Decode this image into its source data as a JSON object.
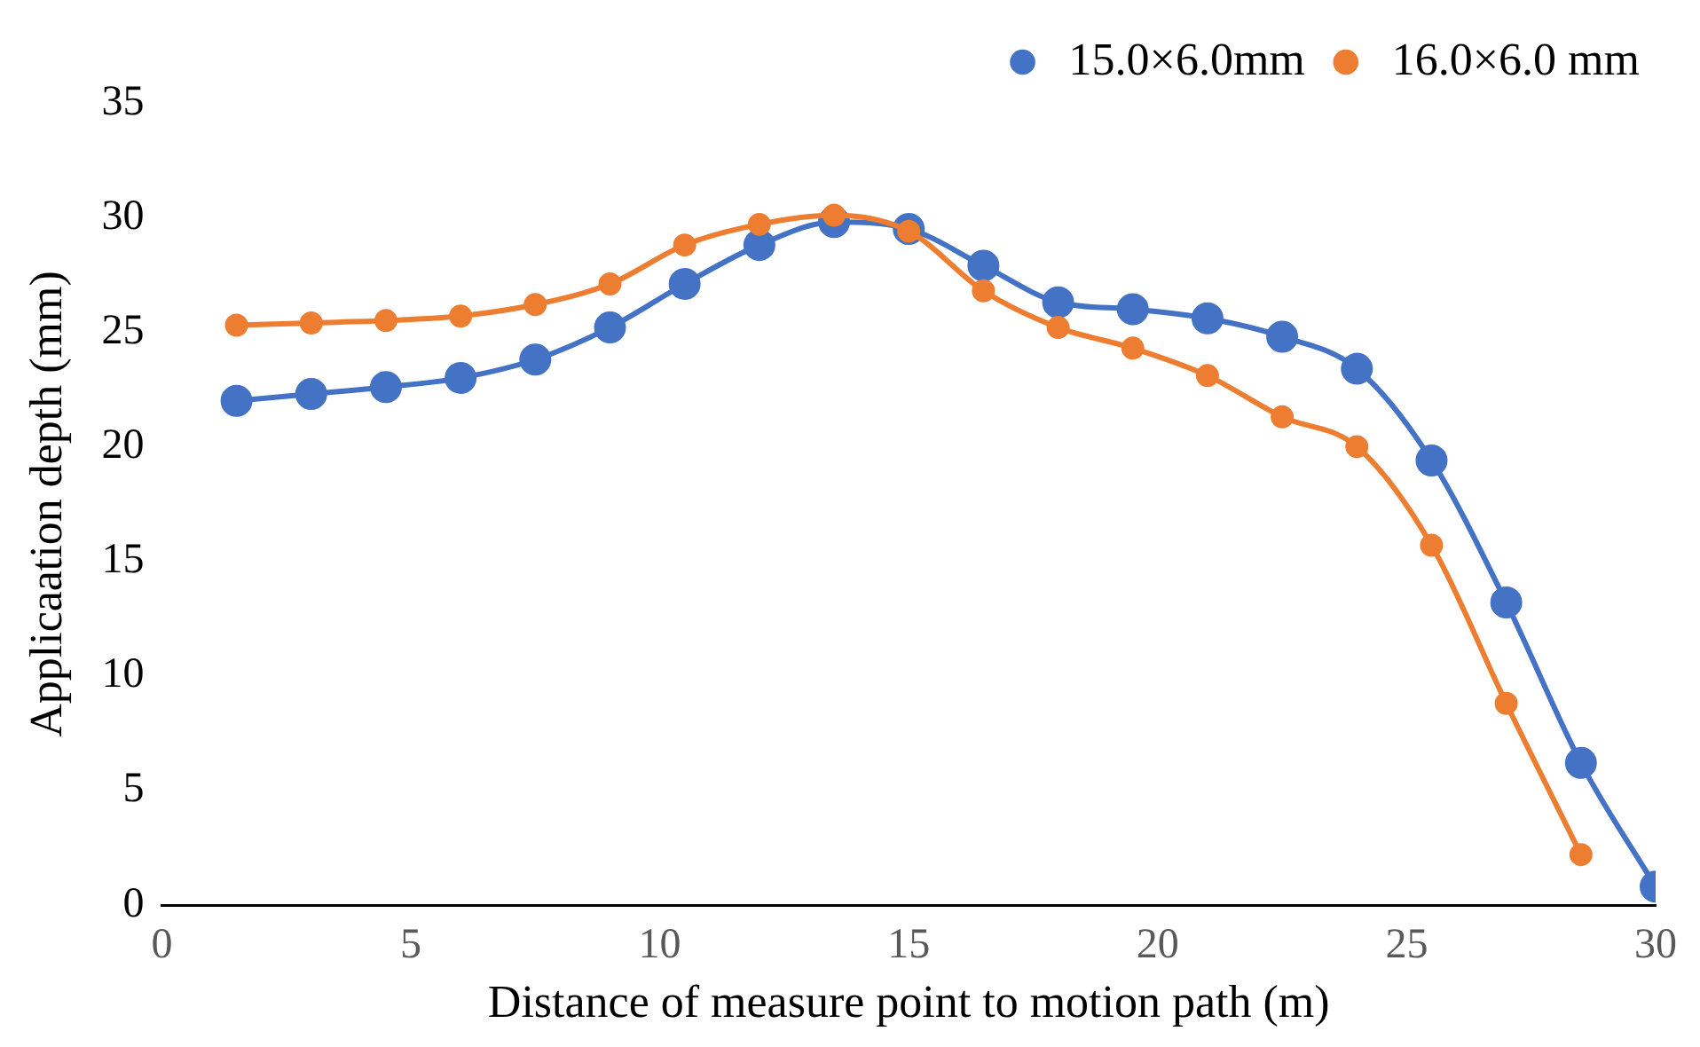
{
  "chart_data": {
    "type": "line",
    "xlabel": "Distance of measure point to motion path (m)",
    "ylabel": "Applicaation depth (mm)",
    "x": [
      1.5,
      3,
      4.5,
      6,
      7.5,
      9,
      10.5,
      12,
      13.5,
      15,
      16.5,
      18,
      19.5,
      21,
      22.5,
      24,
      25.5,
      27,
      28.5,
      30
    ],
    "series": [
      {
        "name": "15.0×6.0mm",
        "color": "#4472c4",
        "values": [
          22.0,
          22.3,
          22.6,
          23.0,
          23.8,
          25.2,
          27.1,
          28.8,
          29.8,
          29.5,
          27.9,
          26.3,
          26.0,
          25.6,
          24.8,
          23.4,
          19.4,
          13.2,
          6.2,
          0.8
        ]
      },
      {
        "name": "16.0×6.0 mm",
        "color": "#ed7d31",
        "values": [
          25.3,
          25.4,
          25.5,
          25.7,
          26.2,
          27.1,
          28.8,
          29.7,
          30.1,
          29.4,
          26.8,
          25.2,
          24.3,
          23.1,
          21.3,
          20.0,
          15.7,
          8.8,
          2.2,
          null
        ]
      }
    ],
    "xlim": [
      0,
      30
    ],
    "ylim": [
      0,
      35
    ],
    "xticks": [
      0,
      5,
      10,
      15,
      20,
      25,
      30
    ],
    "yticks": [
      0,
      5,
      10,
      15,
      20,
      25,
      30,
      35
    ],
    "legend": "top right",
    "marker": "circle"
  }
}
